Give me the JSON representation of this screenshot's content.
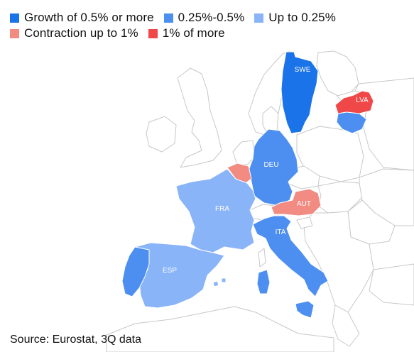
{
  "legend": {
    "items": [
      {
        "label": "Growth of 0.5% or more",
        "color": "#1a73e8"
      },
      {
        "label": "0.25%-0.5%",
        "color": "#4d8ff0"
      },
      {
        "label": "Up to 0.25%",
        "color": "#8ab4f8"
      },
      {
        "label": "Contraction up to 1%",
        "color": "#f28b82"
      },
      {
        "label": "1% of more",
        "color": "#f04848"
      }
    ]
  },
  "countries": {
    "swe": {
      "code": "SWE",
      "color": "#1a73e8"
    },
    "lva": {
      "code": "LVA",
      "color": "#f04848"
    },
    "ltu": {
      "code": "",
      "color": "#4d8ff0"
    },
    "deu": {
      "code": "DEU",
      "color": "#4d8ff0"
    },
    "bel": {
      "code": "",
      "color": "#f28b82"
    },
    "fra": {
      "code": "FRA",
      "color": "#8ab4f8"
    },
    "aut": {
      "code": "AUT",
      "color": "#f28b82"
    },
    "ita": {
      "code": "ITA",
      "color": "#4d8ff0"
    },
    "esp": {
      "code": "ESP",
      "color": "#8ab4f8"
    },
    "prt": {
      "code": "",
      "color": "#4d8ff0"
    }
  },
  "source": "Source: Eurostat, 3Q data"
}
